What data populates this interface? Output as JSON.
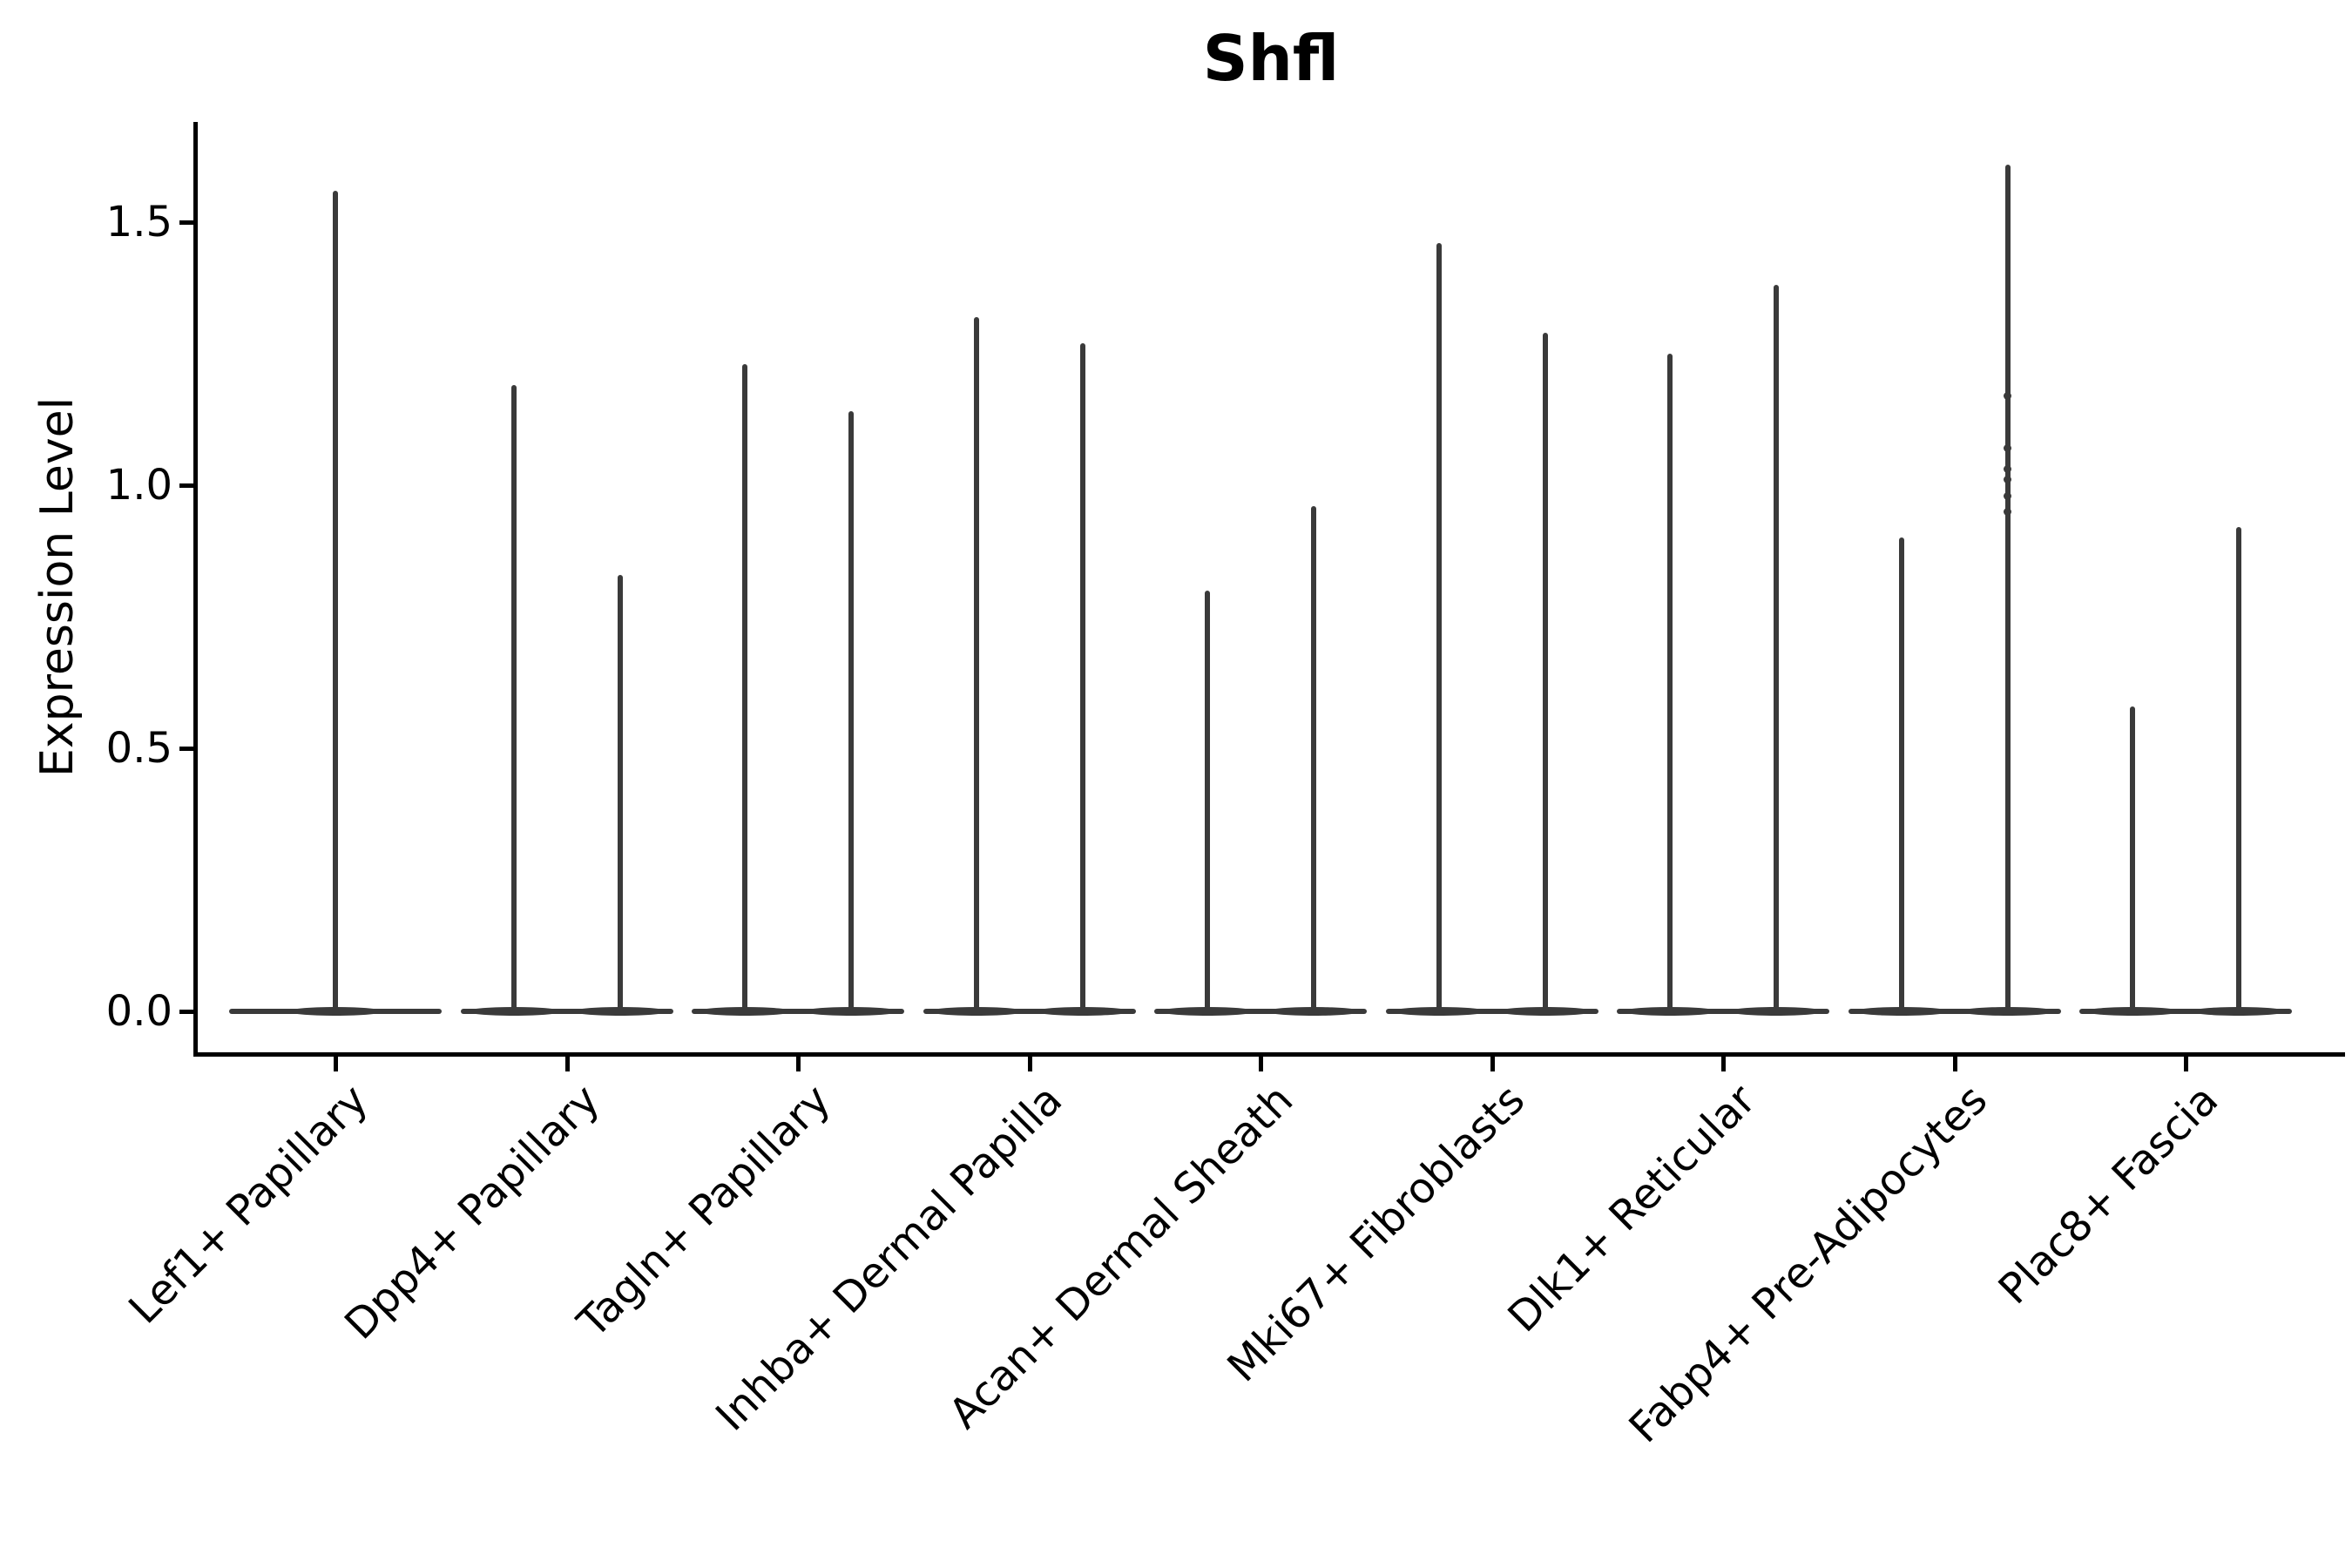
{
  "chart_data": {
    "type": "violin",
    "title": "Shfl",
    "ylabel": "Expression Level",
    "xlabel": "",
    "ylim": [
      -0.08,
      1.69
    ],
    "yticks": [
      0.0,
      0.5,
      1.0,
      1.5
    ],
    "ytick_labels": [
      "0.0",
      "0.5",
      "1.0",
      "1.5"
    ],
    "grid": false,
    "legend": null,
    "categories": [
      "Lef1+ Papillary",
      "Dpp4+ Papillary",
      "Tagln+ Papillary",
      "Inhba+ Dermal Papilla",
      "Acan+ Dermal Sheath",
      "Mki67+ Fibroblasts",
      "Dlk1+ Reticular",
      "Fabp4+ Pre-Adipocytes",
      "Plac8+ Fascia"
    ],
    "groups": [
      {
        "category": "Lef1+ Papillary",
        "violins": [
          {
            "position": "center",
            "max": 1.56
          }
        ]
      },
      {
        "category": "Dpp4+ Papillary",
        "violins": [
          {
            "position": "left",
            "max": 1.19
          },
          {
            "position": "right",
            "max": 0.83
          }
        ]
      },
      {
        "category": "Tagln+ Papillary",
        "violins": [
          {
            "position": "left",
            "max": 1.23
          },
          {
            "position": "right",
            "max": 1.14
          }
        ]
      },
      {
        "category": "Inhba+ Dermal Papilla",
        "violins": [
          {
            "position": "left",
            "max": 1.32
          },
          {
            "position": "right",
            "max": 1.27
          }
        ]
      },
      {
        "category": "Acan+ Dermal Sheath",
        "violins": [
          {
            "position": "left",
            "max": 0.8
          },
          {
            "position": "right",
            "max": 0.96
          }
        ]
      },
      {
        "category": "Mki67+ Fibroblasts",
        "violins": [
          {
            "position": "left",
            "max": 1.46
          },
          {
            "position": "right",
            "max": 1.29
          }
        ]
      },
      {
        "category": "Dlk1+ Reticular",
        "violins": [
          {
            "position": "left",
            "max": 1.25
          },
          {
            "position": "right",
            "max": 1.38
          }
        ]
      },
      {
        "category": "Fabp4+ Pre-Adipocytes",
        "violins": [
          {
            "position": "left",
            "max": 0.9
          },
          {
            "position": "right",
            "max": 1.61,
            "points": [
              1.17,
              1.07,
              1.03,
              1.01,
              0.98,
              0.95
            ]
          }
        ]
      },
      {
        "category": "Plac8+ Fascia",
        "violins": [
          {
            "position": "left",
            "max": 0.58
          },
          {
            "position": "right",
            "max": 0.92
          }
        ]
      }
    ],
    "colors": {
      "violin": "#3a3a3a",
      "axis": "#000000",
      "text": "#000000"
    }
  }
}
